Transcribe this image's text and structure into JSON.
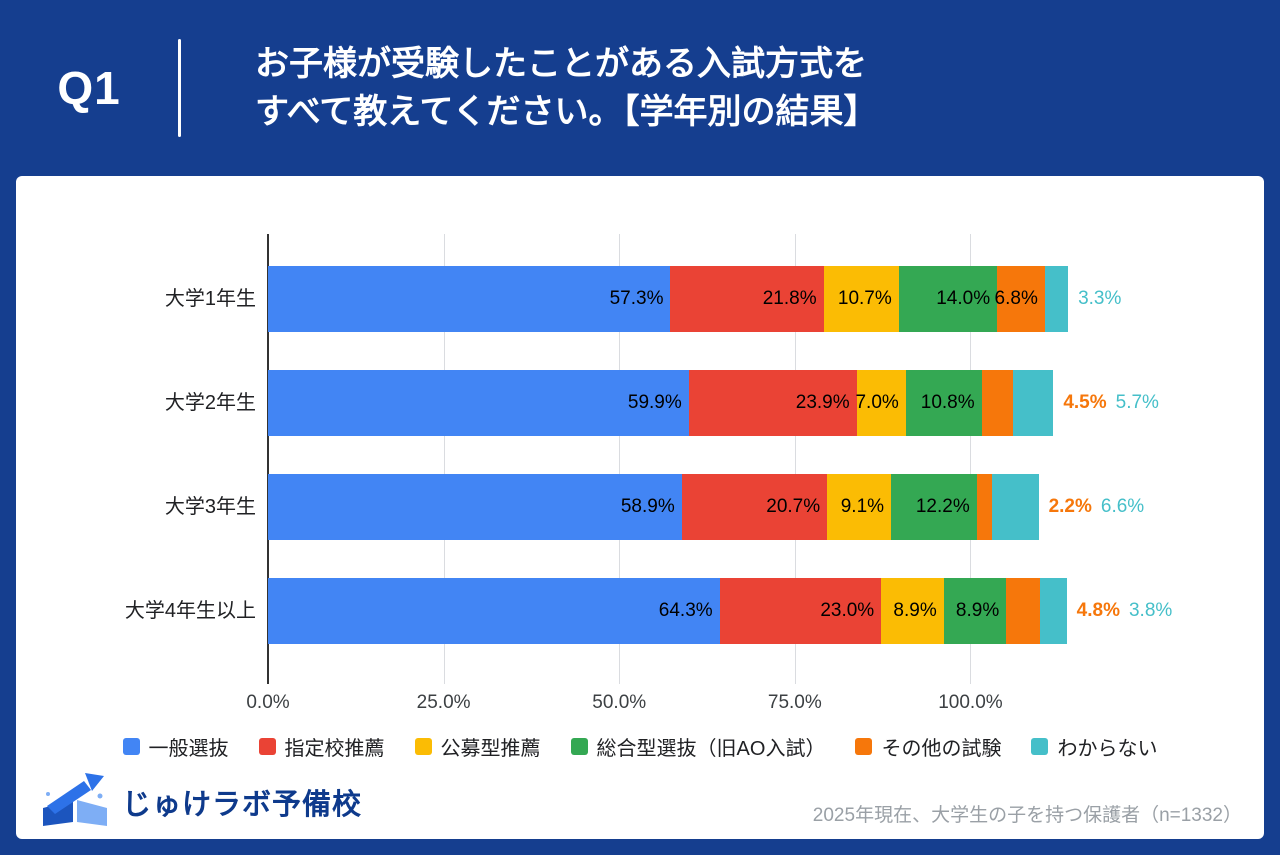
{
  "theme": {
    "header_bg": "#153E8F",
    "card_bg": "#FFFFFF",
    "brand_color": "#0E3A8C",
    "note_color": "#9AA0A6",
    "grid_color": "#DADCE0",
    "axis_color": "#333333",
    "label_color": "#202124"
  },
  "header": {
    "q_label": "Q1",
    "title_line1": "お子様が受験したことがある入試方式を",
    "title_line2": "すべて教えてください。【学年別の結果】"
  },
  "footer": {
    "brand": "じゅけラボ予備校",
    "note": "2025年現在、大学生の子を持つ保護者（n=1332）"
  },
  "chart_data": {
    "type": "bar",
    "orientation": "horizontal",
    "stacked": true,
    "grid": true,
    "legend_position": "bottom",
    "categories": [
      "大学1年生",
      "大学2年生",
      "大学3年生",
      "大学4年生以上"
    ],
    "series": [
      {
        "name": "一般選抜",
        "color": "#4285F4",
        "values": [
          57.3,
          59.9,
          58.9,
          64.3
        ]
      },
      {
        "name": "指定校推薦",
        "color": "#EA4335",
        "values": [
          21.8,
          23.9,
          20.7,
          23.0
        ]
      },
      {
        "name": "公募型推薦",
        "color": "#FBBC04",
        "values": [
          10.7,
          7.0,
          9.1,
          8.9
        ]
      },
      {
        "name": "総合型選抜（旧AO入試）",
        "color": "#34A853",
        "values": [
          14.0,
          10.8,
          12.2,
          8.9
        ]
      },
      {
        "name": "その他の試験",
        "color": "#F6770B",
        "values": [
          6.8,
          4.5,
          2.2,
          4.8
        ],
        "outside_bold": true
      },
      {
        "name": "わからない",
        "color": "#45BFC9",
        "values": [
          3.3,
          5.7,
          6.6,
          3.8
        ]
      }
    ],
    "outside_labels": [
      [
        5
      ],
      [
        4,
        5
      ],
      [
        4,
        5
      ],
      [
        4,
        5
      ]
    ],
    "x_ticks": [
      "0.0%",
      "25.0%",
      "50.0%",
      "75.0%",
      "100.0%"
    ],
    "x_tick_values": [
      0,
      25,
      50,
      75,
      100
    ],
    "xlim": [
      0,
      123
    ],
    "value_suffix": "%"
  }
}
